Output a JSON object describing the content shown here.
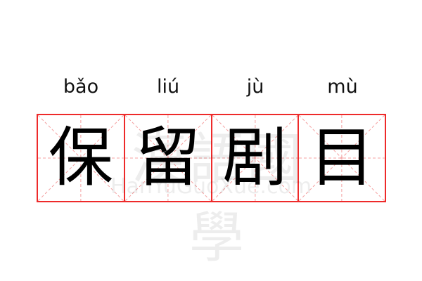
{
  "characters": [
    {
      "pinyin": "bǎo",
      "hanzi": "保"
    },
    {
      "pinyin": "liú",
      "hanzi": "留"
    },
    {
      "pinyin": "jù",
      "hanzi": "剧"
    },
    {
      "pinyin": "mù",
      "hanzi": "目"
    }
  ],
  "watermark": {
    "text": "漢語國學",
    "url": "HanYuGuoXue.com"
  },
  "colors": {
    "grid": "#ee2a2a",
    "guide": "#f4a0a0"
  }
}
